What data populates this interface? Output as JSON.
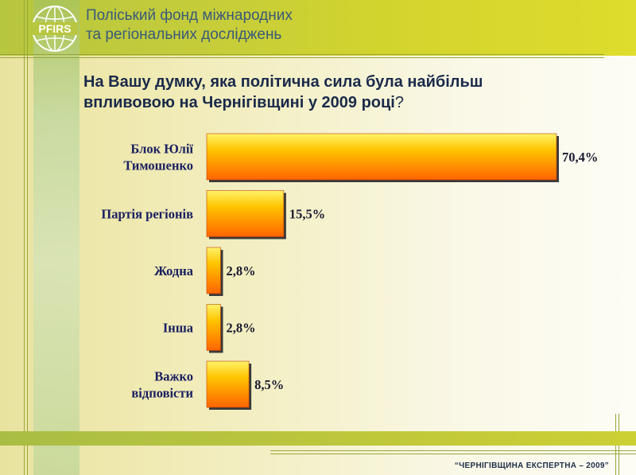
{
  "header": {
    "org_line1": "Поліський фонд міжнародних",
    "org_line2": "та регіональних досліджень",
    "logo_text": "PFIRS"
  },
  "question": {
    "line1": "На Вашу думку, яка політична сила була найбільш",
    "line2": "впливовою на Чернігівщині у 2009 році",
    "qmark": "?"
  },
  "footer": {
    "text": "“ЧЕРНІГІВЩИНА ЕКСПЕРТНА – 2009”"
  },
  "colors": {
    "bar_light": "#fff200",
    "bar_dark": "#ff6a00",
    "bar_shadow": "#3a3a3a"
  },
  "chart_data": {
    "type": "bar",
    "orientation": "horizontal",
    "title": "На Вашу думку, яка політична сила була найбільш впливовою на Чернігівщині у 2009 році?",
    "categories": [
      [
        "Блок Юлії",
        "Тимошенко"
      ],
      [
        "Партія регіонів"
      ],
      [
        "Жодна"
      ],
      [
        "Інша"
      ],
      [
        "Важко",
        "відповісти"
      ]
    ],
    "values": [
      70.4,
      15.5,
      2.8,
      2.8,
      8.5
    ],
    "value_labels": [
      "70,4%",
      "15,5%",
      "2,8%",
      "2,8%",
      "8,5%"
    ],
    "xlim": [
      0,
      70.4
    ],
    "grid": false
  }
}
